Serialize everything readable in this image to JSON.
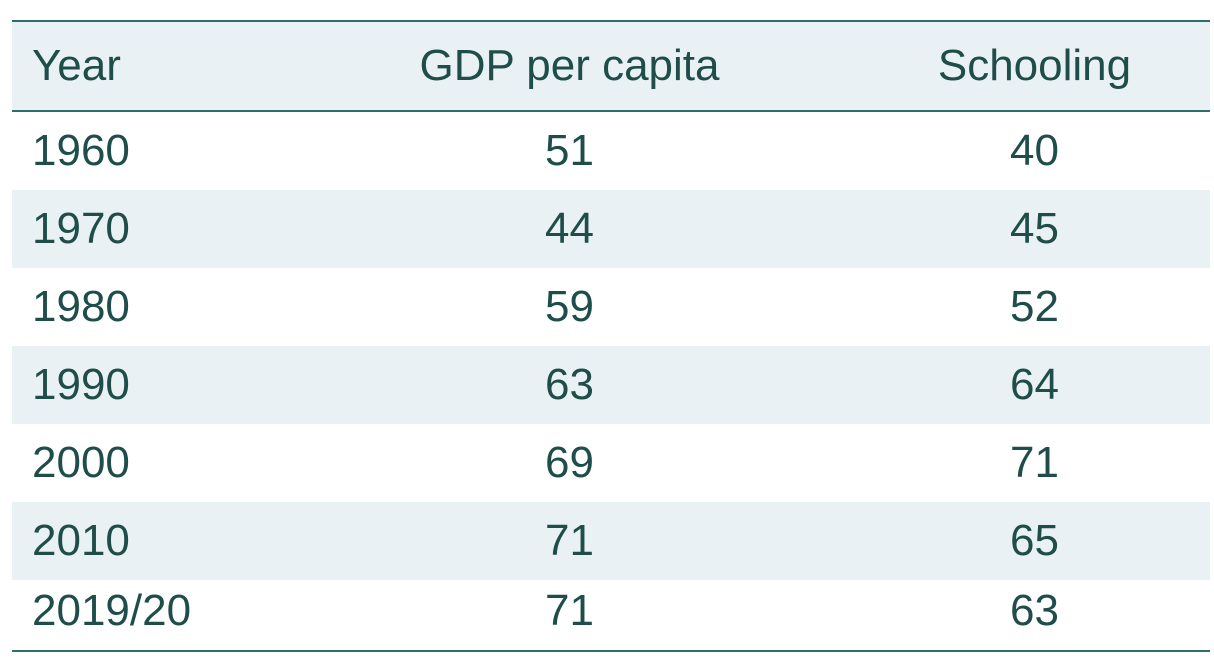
{
  "chart_data": {
    "type": "table",
    "columns": [
      "Year",
      "GDP per capita",
      "Schooling"
    ],
    "rows": [
      [
        "1960",
        "51",
        "40"
      ],
      [
        "1970",
        "44",
        "45"
      ],
      [
        "1980",
        "59",
        "52"
      ],
      [
        "1990",
        "63",
        "64"
      ],
      [
        "2000",
        "69",
        "71"
      ],
      [
        "2010",
        "71",
        "65"
      ],
      [
        "2019/20",
        "71",
        "63"
      ]
    ],
    "colors": {
      "text": "#1f4e4a",
      "rule": "#2f6e69",
      "band": "#e9f1f4"
    }
  }
}
